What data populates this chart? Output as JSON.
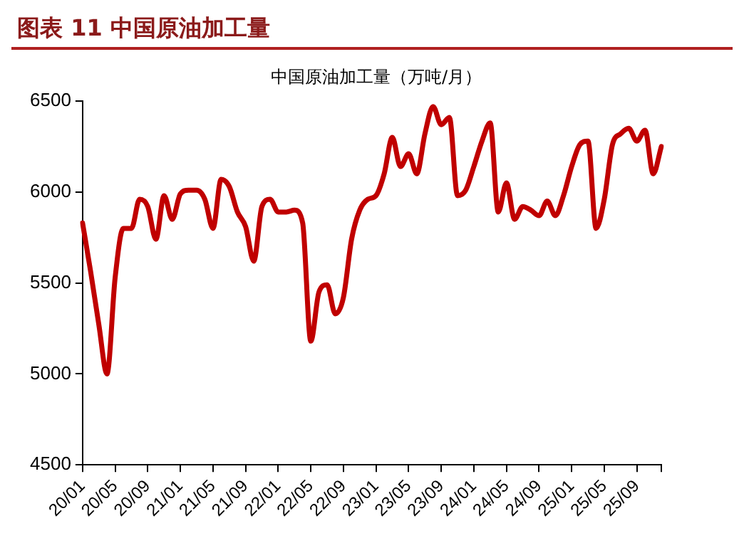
{
  "chart_data": {
    "type": "line",
    "title": "图表 11  中国原油加工量",
    "categories": [
      "20/01",
      null,
      null,
      null,
      "20/05",
      null,
      null,
      null,
      "20/09",
      null,
      null,
      null,
      "21/01",
      null,
      null,
      null,
      "21/05",
      null,
      null,
      null,
      "21/09",
      null,
      null,
      null,
      "22/01",
      null,
      null,
      null,
      "22/05",
      null,
      null,
      null,
      "22/09",
      null,
      null,
      null,
      "23/01",
      null,
      null,
      null,
      "23/05",
      null,
      null,
      null,
      "23/09",
      null,
      null,
      null,
      "24/01",
      null,
      null,
      null,
      "24/05",
      null,
      null,
      null,
      "24/09",
      null,
      null,
      null,
      "25/01",
      null,
      null,
      null,
      "25/05",
      null,
      null,
      null,
      "25/09",
      null,
      null,
      null
    ],
    "series": [
      {
        "name": "中国原油加工量（万吨/月）",
        "color": "#c00000",
        "values": [
          5830,
          5560,
          5270,
          5000,
          5530,
          5800,
          5800,
          5960,
          5920,
          5740,
          5980,
          5850,
          5990,
          6010,
          6010,
          5960,
          5800,
          6070,
          6030,
          5890,
          5810,
          5620,
          5920,
          5960,
          5890,
          5890,
          5900,
          5830,
          5180,
          5450,
          5490,
          5330,
          5420,
          5740,
          5900,
          5960,
          5980,
          6100,
          6300,
          6140,
          6210,
          6100,
          6320,
          6470,
          6370,
          6410,
          5980,
          6010,
          6140,
          6280,
          6380,
          5890,
          6050,
          5850,
          5920,
          5900,
          5870,
          5950,
          5870,
          5980,
          6140,
          6260,
          6280,
          5800,
          5960,
          6260,
          6320,
          6350,
          6280,
          6340,
          6100,
          6250
        ]
      }
    ],
    "ylim": [
      4500,
      6500
    ],
    "yticks": [
      4500,
      5000,
      5500,
      6000,
      6500
    ],
    "grid": false,
    "legend": "top",
    "marker": "none",
    "line_style": "solid"
  }
}
